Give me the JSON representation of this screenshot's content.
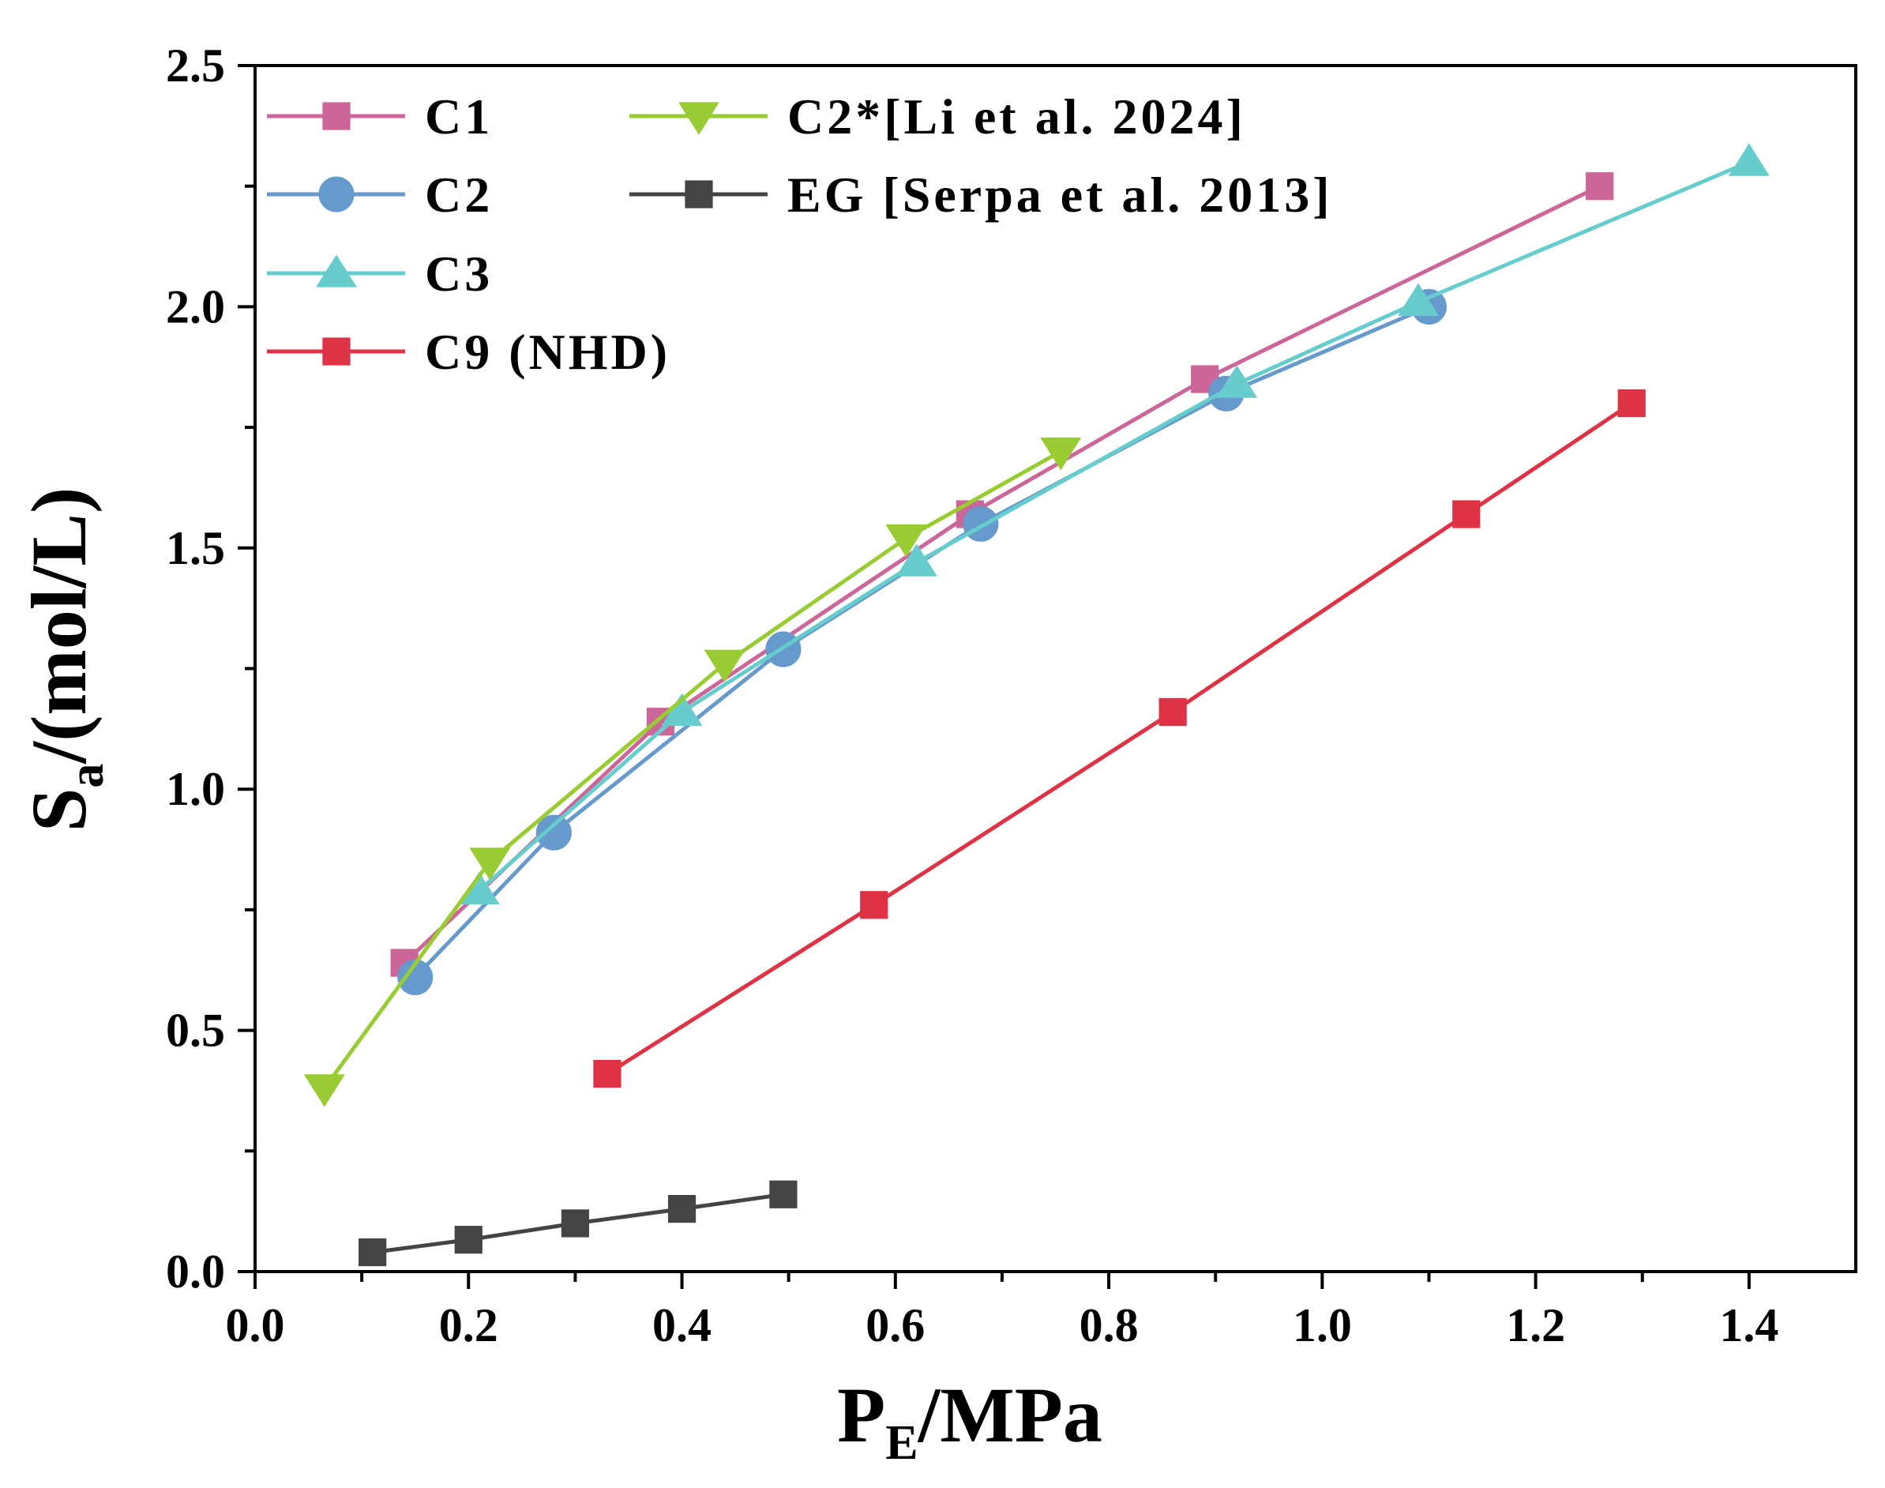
{
  "chart_data": {
    "type": "line",
    "xlabel": "P",
    "xlabel_sub": "E",
    "xlabel_unit": "/MPa",
    "ylabel": "S",
    "ylabel_sub": "a",
    "ylabel_unit": "/(mol/L)",
    "xlim": [
      0.0,
      1.5
    ],
    "ylim": [
      0.0,
      2.5
    ],
    "x_ticks": [
      "0.0",
      "0.2",
      "0.4",
      "0.6",
      "0.8",
      "1.0",
      "1.2",
      "1.4"
    ],
    "y_ticks": [
      "0.0",
      "0.5",
      "1.0",
      "1.5",
      "2.0",
      "2.5"
    ],
    "grid": false,
    "legend_position": "top-left",
    "series": [
      {
        "name": "C1",
        "color": "#cc6699",
        "marker": "square",
        "x": [
          0.14,
          0.38,
          0.67,
          0.89,
          1.26
        ],
        "y": [
          0.64,
          1.14,
          1.57,
          1.85,
          2.25
        ]
      },
      {
        "name": "C2",
        "color": "#6699cc",
        "marker": "circle",
        "x": [
          0.15,
          0.28,
          0.495,
          0.68,
          0.91,
          1.1
        ],
        "y": [
          0.61,
          0.91,
          1.29,
          1.55,
          1.82,
          2.0
        ]
      },
      {
        "name": "C3",
        "color": "#66cccc",
        "marker": "triangle-up",
        "x": [
          0.21,
          0.4,
          0.62,
          0.92,
          1.09,
          1.4
        ],
        "y": [
          0.79,
          1.16,
          1.47,
          1.84,
          2.01,
          2.3
        ]
      },
      {
        "name": "C9 (NHD)",
        "color": "#dd3344",
        "marker": "square",
        "x": [
          0.33,
          0.58,
          0.86,
          1.135,
          1.29
        ],
        "y": [
          0.41,
          0.76,
          1.16,
          1.57,
          1.8
        ]
      },
      {
        "name": "C2*[Li et al. 2024]",
        "color": "#99cc33",
        "marker": "triangle-down",
        "x": [
          0.065,
          0.22,
          0.44,
          0.61,
          0.755
        ],
        "y": [
          0.38,
          0.85,
          1.26,
          1.52,
          1.7
        ]
      },
      {
        "name": "EG [Serpa et al. 2013]",
        "color": "#444444",
        "marker": "square",
        "x": [
          0.11,
          0.2,
          0.3,
          0.4,
          0.495
        ],
        "y": [
          0.04,
          0.066,
          0.1,
          0.13,
          0.16
        ]
      }
    ]
  }
}
